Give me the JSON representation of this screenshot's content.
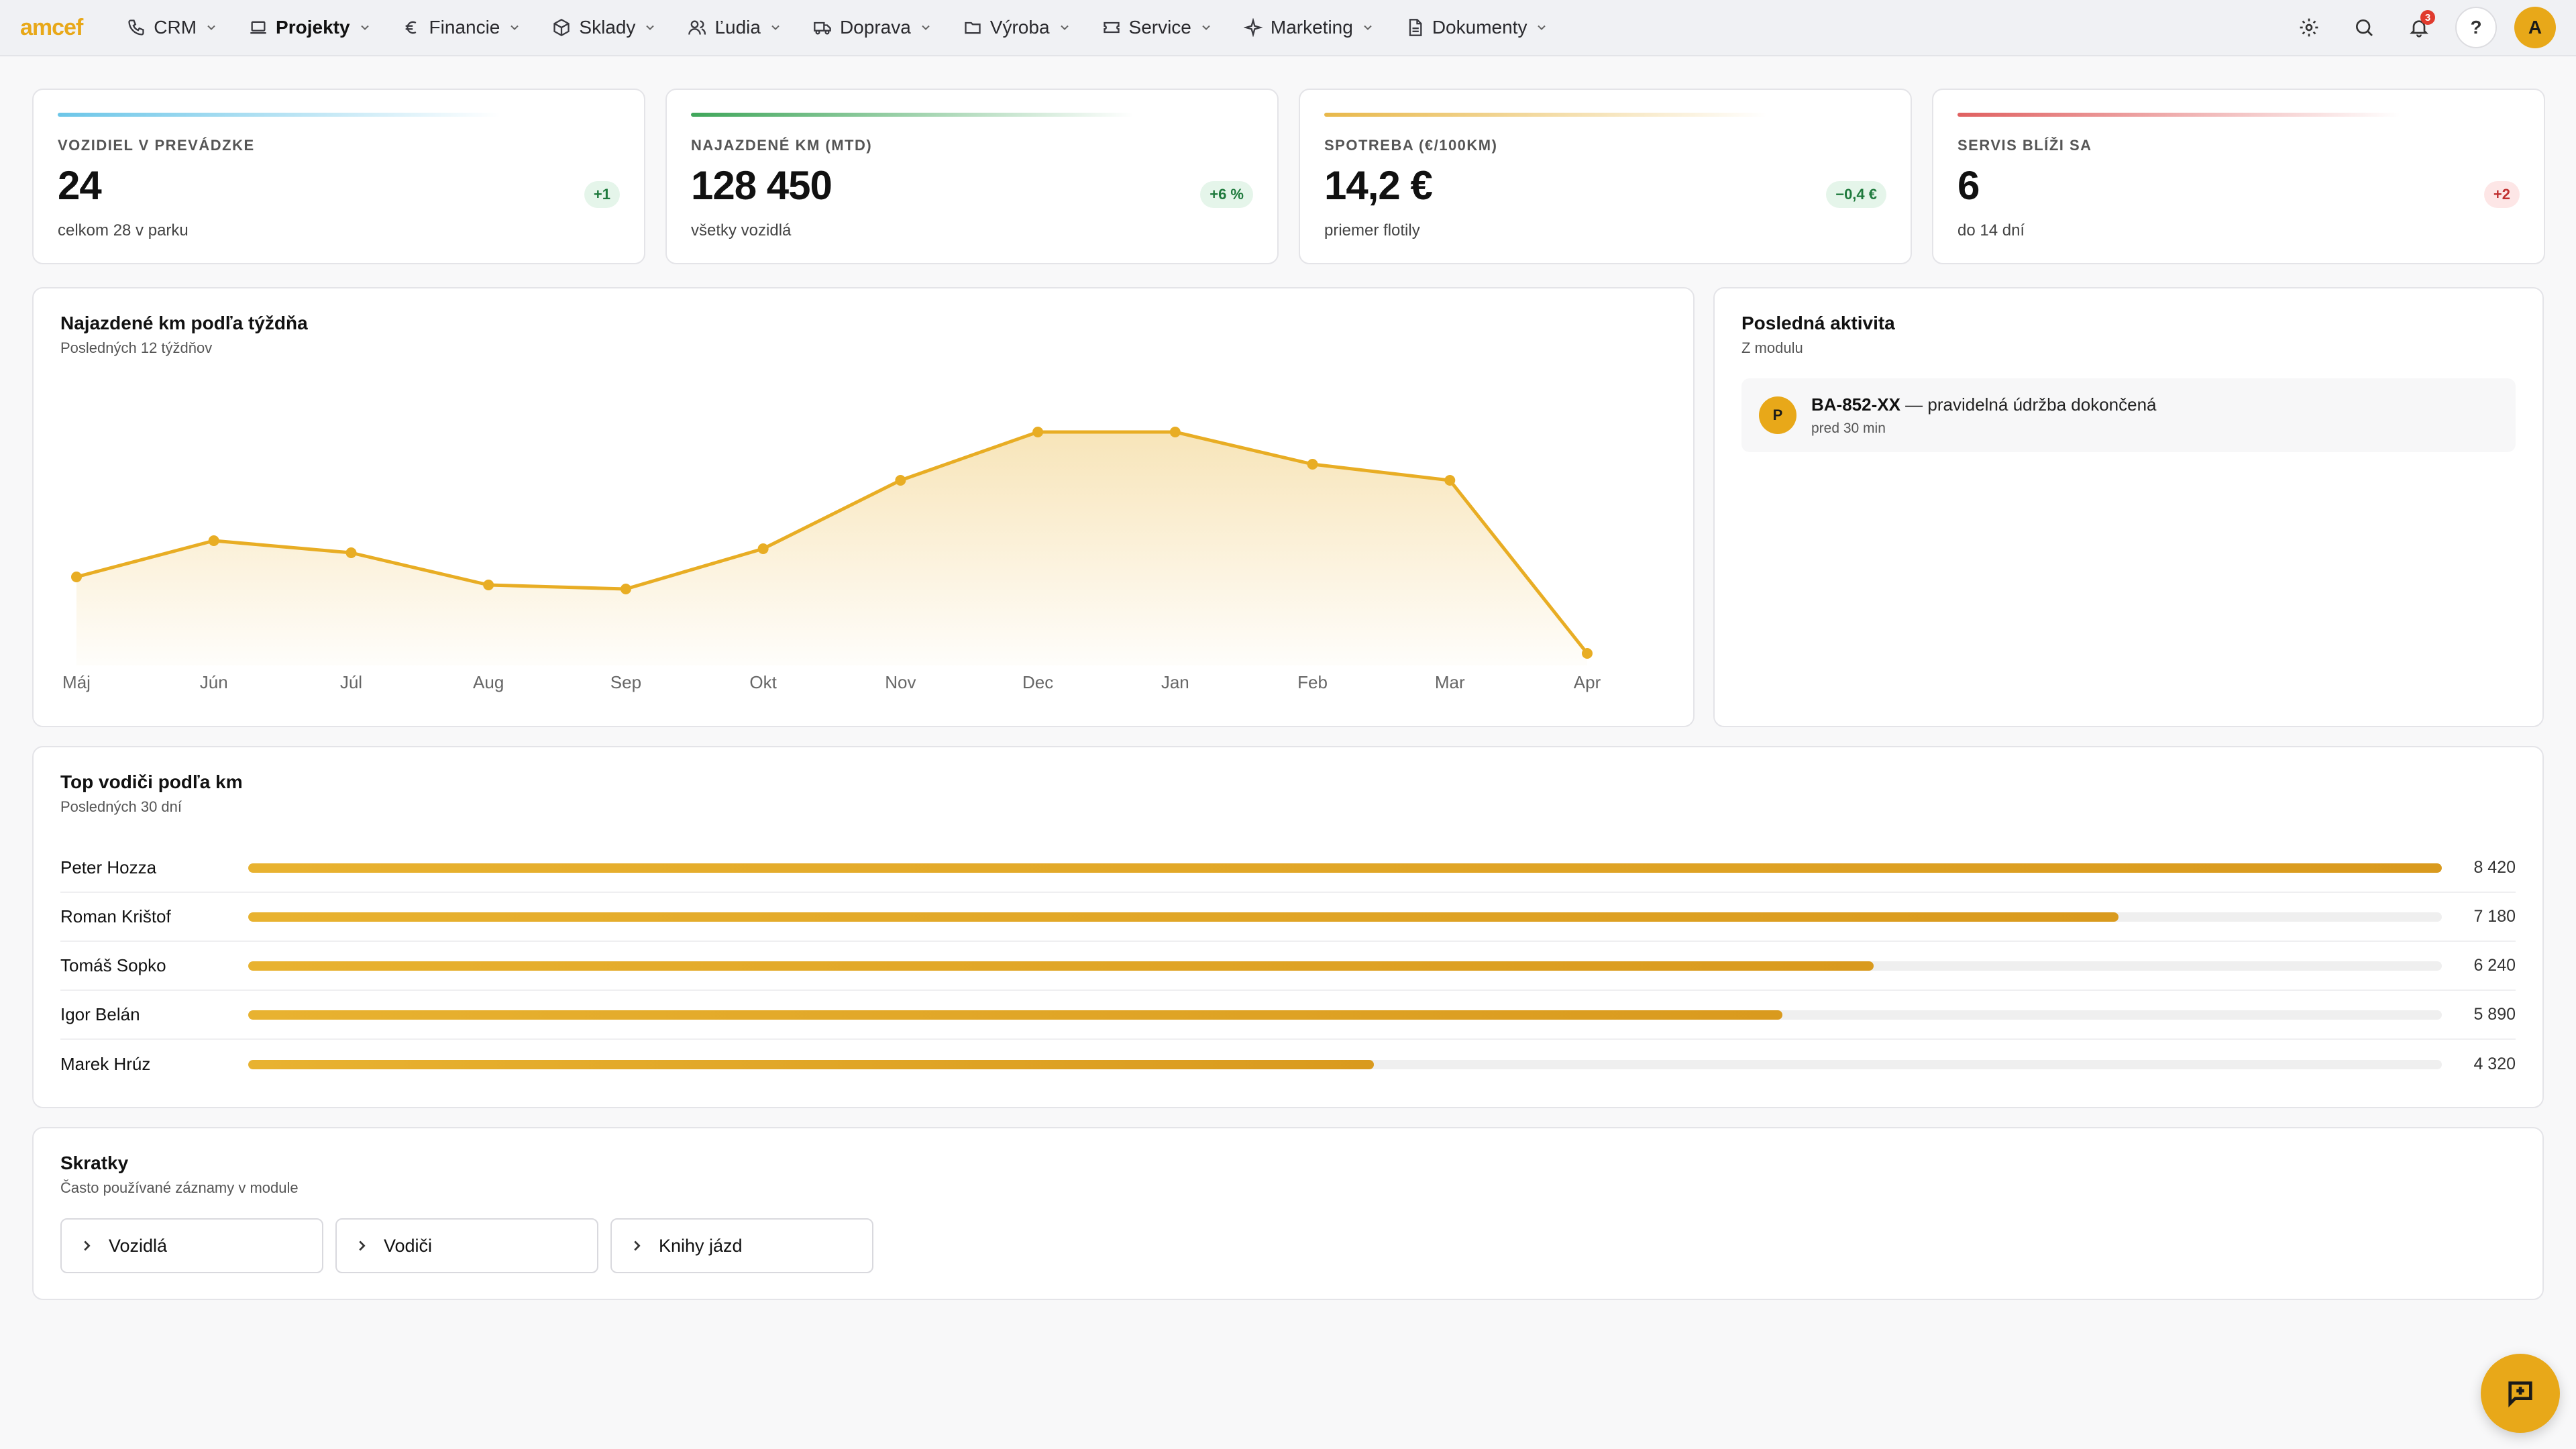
{
  "app": {
    "logo": "amcef"
  },
  "nav": {
    "items": [
      {
        "label": "CRM",
        "icon": "phone-icon",
        "active": false
      },
      {
        "label": "Projekty",
        "icon": "laptop-icon",
        "active": true
      },
      {
        "label": "Financie",
        "icon": "euro-icon",
        "active": false
      },
      {
        "label": "Sklady",
        "icon": "box-icon",
        "active": false
      },
      {
        "label": "Ľudia",
        "icon": "users-icon",
        "active": false
      },
      {
        "label": "Doprava",
        "icon": "truck-icon",
        "active": false
      },
      {
        "label": "Výroba",
        "icon": "folder-icon",
        "active": false
      },
      {
        "label": "Service",
        "icon": "ticket-icon",
        "active": false
      },
      {
        "label": "Marketing",
        "icon": "sparkle-icon",
        "active": false
      },
      {
        "label": "Dokumenty",
        "icon": "document-icon",
        "active": false
      }
    ],
    "notifications_count": "3",
    "help_label": "?",
    "avatar_initial": "A"
  },
  "kpis": [
    {
      "title": "Vozidiel v prevádzke",
      "value": "24",
      "sub": "celkom 28 v parku",
      "delta": "+1",
      "trend": "up",
      "accent": "#6cc6e8"
    },
    {
      "title": "Najazdené km (MTD)",
      "value": "128 450",
      "sub": "všetky vozidlá",
      "delta": "+6 %",
      "trend": "up",
      "accent": "#3fa65a"
    },
    {
      "title": "Spotreba (€/100km)",
      "value": "14,2 €",
      "sub": "priemer flotily",
      "delta": "−0,4 €",
      "trend": "up",
      "accent": "#e8b84a"
    },
    {
      "title": "Servis blíži sa",
      "value": "6",
      "sub": "do 14 dní",
      "delta": "+2",
      "trend": "down",
      "accent": "#e06060"
    }
  ],
  "chart_data": {
    "type": "area",
    "title": "Najazdené km podľa týždňa",
    "subtitle": "Posledných 12 týždňov",
    "categories": [
      "Máj",
      "Jún",
      "Júl",
      "Aug",
      "Sep",
      "Okt",
      "Nov",
      "Dec",
      "Jan",
      "Feb",
      "Mar",
      "Apr"
    ],
    "values": [
      10200,
      11100,
      10800,
      10000,
      9900,
      10900,
      12600,
      13800,
      13800,
      13000,
      12600,
      8300
    ],
    "ylim": [
      8000,
      14500
    ],
    "grid": false,
    "legend": "none",
    "color": "#e8ad24"
  },
  "activity": {
    "title": "Posledná aktivita",
    "subtitle": "Z modulu",
    "items": [
      {
        "initial": "P",
        "code": "BA-852-XX",
        "text": " — pravidelná údržba dokončená",
        "time": "pred 30 min"
      }
    ]
  },
  "drivers": {
    "title": "Top vodiči podľa km",
    "subtitle": "Posledných 30 dní",
    "max": 8420,
    "rows": [
      {
        "name": "Peter Hozza",
        "value": 8420,
        "display": "8 420"
      },
      {
        "name": "Roman Krištof",
        "value": 7180,
        "display": "7 180"
      },
      {
        "name": "Tomáš Sopko",
        "value": 6240,
        "display": "6 240"
      },
      {
        "name": "Igor Belán",
        "value": 5890,
        "display": "5 890"
      },
      {
        "name": "Marek Hrúz",
        "value": 4320,
        "display": "4 320"
      }
    ]
  },
  "shortcuts": {
    "title": "Skratky",
    "subtitle": "Často používané záznamy v module",
    "items": [
      "Vozidlá",
      "Vodiči",
      "Knihy jázd"
    ]
  }
}
